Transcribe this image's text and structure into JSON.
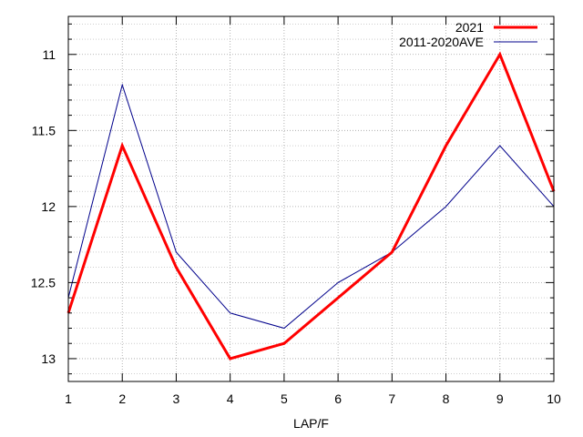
{
  "chart_data": {
    "type": "line",
    "title": "",
    "xlabel": "LAP/F",
    "ylabel": "",
    "x": [
      1,
      2,
      3,
      4,
      5,
      6,
      7,
      8,
      9,
      10
    ],
    "xlim": [
      1,
      10
    ],
    "ylim": [
      10.75,
      13.15
    ],
    "y_reversed": true,
    "y_ticks": [
      11,
      11.5,
      12,
      12.5,
      13
    ],
    "y_tick_labels": [
      "11",
      "11.5",
      "12",
      "12.5",
      "13"
    ],
    "x_ticks": [
      1,
      2,
      3,
      4,
      5,
      6,
      7,
      8,
      9,
      10
    ],
    "x_tick_labels": [
      "1",
      "2",
      "3",
      "4",
      "5",
      "6",
      "7",
      "8",
      "9",
      "10"
    ],
    "grid": true,
    "legend_position": "top-right",
    "series": [
      {
        "name": "2021",
        "color": "#ff0000",
        "values": [
          12.7,
          11.6,
          12.4,
          13.0,
          12.9,
          12.6,
          12.3,
          11.6,
          11.0,
          11.9
        ]
      },
      {
        "name": "2011-2020AVE",
        "color": "#00008b",
        "values": [
          12.6,
          11.2,
          12.3,
          12.7,
          12.8,
          12.5,
          12.3,
          12.0,
          11.6,
          12.0
        ]
      }
    ]
  }
}
